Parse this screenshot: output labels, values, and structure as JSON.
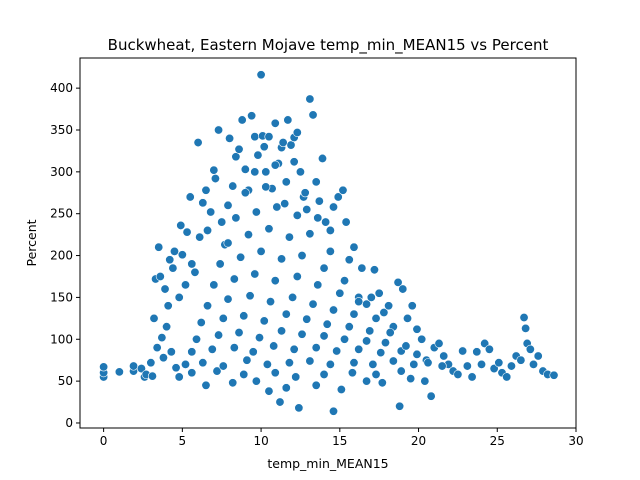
{
  "chart_data": {
    "type": "scatter",
    "title": "Buckwheat, Eastern Mojave temp_min_MEAN15 vs Percent",
    "xlabel": "temp_min_MEAN15",
    "ylabel": "Percent",
    "xlim": [
      -1.5,
      30.0
    ],
    "ylim": [
      -6,
      436
    ],
    "xticks": [
      0,
      5,
      10,
      15,
      20,
      25,
      30
    ],
    "yticks": [
      0,
      50,
      100,
      150,
      200,
      250,
      300,
      350,
      400
    ],
    "grid": false,
    "legend": "none",
    "marker_color": "#1f77b4",
    "marker_edge": "#ffffff",
    "series": [
      {
        "points": [
          [
            0.0,
            55
          ],
          [
            0.0,
            60
          ],
          [
            0.0,
            67
          ],
          [
            1.0,
            61
          ],
          [
            1.9,
            62
          ],
          [
            1.9,
            68
          ],
          [
            2.4,
            65
          ],
          [
            2.6,
            55
          ],
          [
            2.7,
            58
          ],
          [
            3.0,
            72
          ],
          [
            3.1,
            56
          ],
          [
            3.2,
            125
          ],
          [
            3.3,
            172
          ],
          [
            3.4,
            90
          ],
          [
            3.5,
            210
          ],
          [
            3.6,
            175
          ],
          [
            3.7,
            102
          ],
          [
            3.8,
            78
          ],
          [
            3.9,
            160
          ],
          [
            4.0,
            115
          ],
          [
            4.1,
            140
          ],
          [
            4.2,
            195
          ],
          [
            4.3,
            85
          ],
          [
            4.4,
            185
          ],
          [
            4.5,
            205
          ],
          [
            4.6,
            66
          ],
          [
            4.8,
            150
          ],
          [
            4.9,
            236
          ],
          [
            5.0,
            201
          ],
          [
            5.2,
            165
          ],
          [
            5.3,
            228
          ],
          [
            5.5,
            270
          ],
          [
            5.6,
            190
          ],
          [
            5.8,
            180
          ],
          [
            6.0,
            335
          ],
          [
            6.1,
            222
          ],
          [
            6.3,
            263
          ],
          [
            6.5,
            278
          ],
          [
            6.6,
            230
          ],
          [
            6.8,
            252
          ],
          [
            7.0,
            302
          ],
          [
            7.1,
            292
          ],
          [
            7.3,
            350
          ],
          [
            7.5,
            240
          ],
          [
            7.7,
            213
          ],
          [
            7.9,
            260
          ],
          [
            8.0,
            340
          ],
          [
            8.2,
            283
          ],
          [
            8.4,
            318
          ],
          [
            8.6,
            327
          ],
          [
            8.8,
            362
          ],
          [
            9.0,
            303
          ],
          [
            9.2,
            278
          ],
          [
            9.4,
            367
          ],
          [
            9.6,
            342
          ],
          [
            9.8,
            320
          ],
          [
            10.0,
            416
          ],
          [
            10.1,
            343
          ],
          [
            10.3,
            300
          ],
          [
            10.5,
            342
          ],
          [
            10.7,
            280
          ],
          [
            10.9,
            358
          ],
          [
            11.1,
            310
          ],
          [
            11.3,
            329
          ],
          [
            11.5,
            262
          ],
          [
            11.7,
            362
          ],
          [
            11.9,
            332
          ],
          [
            12.1,
            341
          ],
          [
            12.3,
            347
          ],
          [
            12.5,
            300
          ],
          [
            12.7,
            270
          ],
          [
            12.9,
            255
          ],
          [
            13.1,
            387
          ],
          [
            13.3,
            368
          ],
          [
            13.5,
            288
          ],
          [
            13.7,
            265
          ],
          [
            13.9,
            316
          ],
          [
            14.1,
            240
          ],
          [
            14.4,
            230
          ],
          [
            14.6,
            258
          ],
          [
            14.9,
            270
          ],
          [
            15.2,
            278
          ],
          [
            15.4,
            240
          ],
          [
            15.6,
            195
          ],
          [
            15.9,
            210
          ],
          [
            16.2,
            150
          ],
          [
            16.4,
            185
          ],
          [
            16.7,
            142
          ],
          [
            17.0,
            150
          ],
          [
            17.2,
            183
          ],
          [
            17.5,
            155
          ],
          [
            17.8,
            132
          ],
          [
            18.1,
            140
          ],
          [
            18.4,
            115
          ],
          [
            18.7,
            168
          ],
          [
            19.0,
            160
          ],
          [
            19.3,
            125
          ],
          [
            19.6,
            140
          ],
          [
            19.9,
            112
          ],
          [
            20.2,
            100
          ],
          [
            20.5,
            75
          ],
          [
            20.8,
            32
          ],
          [
            21.0,
            90
          ],
          [
            21.3,
            95
          ],
          [
            21.6,
            80
          ],
          [
            21.9,
            70
          ],
          [
            22.2,
            62
          ],
          [
            22.5,
            58
          ],
          [
            22.8,
            86
          ],
          [
            23.1,
            68
          ],
          [
            23.4,
            55
          ],
          [
            23.7,
            85
          ],
          [
            24.0,
            70
          ],
          [
            24.2,
            95
          ],
          [
            24.5,
            88
          ],
          [
            24.8,
            65
          ],
          [
            25.1,
            72
          ],
          [
            25.3,
            60
          ],
          [
            25.6,
            55
          ],
          [
            25.9,
            68
          ],
          [
            26.2,
            80
          ],
          [
            26.5,
            75
          ],
          [
            26.7,
            126
          ],
          [
            26.8,
            113
          ],
          [
            26.9,
            95
          ],
          [
            27.1,
            88
          ],
          [
            27.3,
            70
          ],
          [
            27.6,
            80
          ],
          [
            27.9,
            62
          ],
          [
            28.2,
            58
          ],
          [
            28.6,
            57
          ],
          [
            11.2,
            25
          ],
          [
            12.4,
            18
          ],
          [
            14.6,
            14
          ],
          [
            18.8,
            20
          ],
          [
            13.5,
            45
          ],
          [
            6.5,
            45
          ],
          [
            8.2,
            48
          ],
          [
            9.7,
            50
          ],
          [
            11.6,
            42
          ],
          [
            10.5,
            38
          ],
          [
            15.1,
            40
          ],
          [
            16.7,
            50
          ],
          [
            17.7,
            48
          ],
          [
            19.5,
            53
          ],
          [
            20.4,
            50
          ],
          [
            4.8,
            55
          ],
          [
            5.6,
            60
          ],
          [
            7.2,
            62
          ],
          [
            8.9,
            58
          ],
          [
            10.9,
            60
          ],
          [
            12.2,
            55
          ],
          [
            14.0,
            58
          ],
          [
            15.8,
            60
          ],
          [
            17.3,
            58
          ],
          [
            18.9,
            62
          ],
          [
            5.2,
            70
          ],
          [
            6.3,
            72
          ],
          [
            7.6,
            68
          ],
          [
            9.1,
            75
          ],
          [
            10.4,
            70
          ],
          [
            11.8,
            72
          ],
          [
            13.1,
            74
          ],
          [
            14.4,
            70
          ],
          [
            15.9,
            72
          ],
          [
            17.1,
            70
          ],
          [
            18.4,
            74
          ],
          [
            19.7,
            70
          ],
          [
            20.6,
            72
          ],
          [
            21.5,
            68
          ],
          [
            5.6,
            85
          ],
          [
            6.9,
            88
          ],
          [
            8.3,
            90
          ],
          [
            9.5,
            85
          ],
          [
            10.8,
            92
          ],
          [
            12.1,
            88
          ],
          [
            13.5,
            90
          ],
          [
            14.8,
            86
          ],
          [
            16.2,
            88
          ],
          [
            17.6,
            84
          ],
          [
            18.9,
            86
          ],
          [
            19.9,
            82
          ],
          [
            5.9,
            100
          ],
          [
            7.3,
            105
          ],
          [
            8.6,
            108
          ],
          [
            9.9,
            102
          ],
          [
            11.3,
            110
          ],
          [
            12.6,
            106
          ],
          [
            14.0,
            104
          ],
          [
            15.3,
            100
          ],
          [
            16.7,
            98
          ],
          [
            17.9,
            96
          ],
          [
            19.2,
            92
          ],
          [
            6.2,
            120
          ],
          [
            7.6,
            125
          ],
          [
            8.9,
            128
          ],
          [
            10.2,
            122
          ],
          [
            11.6,
            130
          ],
          [
            12.9,
            124
          ],
          [
            14.2,
            118
          ],
          [
            15.6,
            115
          ],
          [
            16.9,
            110
          ],
          [
            18.2,
            108
          ],
          [
            6.6,
            140
          ],
          [
            7.9,
            148
          ],
          [
            9.3,
            152
          ],
          [
            10.6,
            145
          ],
          [
            12.0,
            150
          ],
          [
            13.3,
            142
          ],
          [
            14.6,
            135
          ],
          [
            15.9,
            130
          ],
          [
            17.3,
            125
          ],
          [
            7.0,
            165
          ],
          [
            8.3,
            172
          ],
          [
            9.6,
            178
          ],
          [
            10.9,
            170
          ],
          [
            12.3,
            175
          ],
          [
            13.6,
            165
          ],
          [
            15.0,
            155
          ],
          [
            16.2,
            145
          ],
          [
            7.4,
            190
          ],
          [
            8.7,
            198
          ],
          [
            10.0,
            205
          ],
          [
            11.3,
            196
          ],
          [
            12.6,
            200
          ],
          [
            14.0,
            185
          ],
          [
            15.3,
            170
          ],
          [
            7.9,
            215
          ],
          [
            9.2,
            225
          ],
          [
            10.5,
            232
          ],
          [
            11.8,
            222
          ],
          [
            13.1,
            226
          ],
          [
            14.4,
            205
          ],
          [
            8.4,
            245
          ],
          [
            9.7,
            252
          ],
          [
            11.0,
            258
          ],
          [
            12.3,
            248
          ],
          [
            13.6,
            245
          ],
          [
            9.0,
            275
          ],
          [
            10.3,
            282
          ],
          [
            11.6,
            288
          ],
          [
            12.8,
            275
          ],
          [
            9.6,
            300
          ],
          [
            10.9,
            308
          ],
          [
            12.1,
            312
          ],
          [
            10.2,
            330
          ],
          [
            11.4,
            335
          ]
        ]
      }
    ]
  }
}
